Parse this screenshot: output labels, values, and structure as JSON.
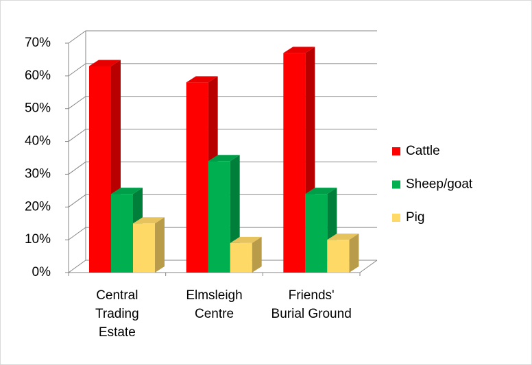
{
  "chart_data": {
    "type": "bar3d",
    "categories": [
      "Central Trading Estate",
      "Elmsleigh Centre",
      "Friends' Burial Ground"
    ],
    "series": [
      {
        "name": "Cattle",
        "color": "#ff0000",
        "values": [
          63,
          58,
          67
        ]
      },
      {
        "name": "Sheep/goat",
        "color": "#00b050",
        "values": [
          24,
          34,
          24
        ]
      },
      {
        "name": "Pig",
        "color": "#ffd966",
        "values": [
          15,
          9,
          10
        ]
      }
    ],
    "ylim": [
      0,
      70
    ],
    "yticks": [
      {
        "value": 0,
        "label": "0%"
      },
      {
        "value": 10,
        "label": "10%"
      },
      {
        "value": 20,
        "label": "20%"
      },
      {
        "value": 30,
        "label": "30%"
      },
      {
        "value": 40,
        "label": "40%"
      },
      {
        "value": 50,
        "label": "50%"
      },
      {
        "value": 60,
        "label": "60%"
      },
      {
        "value": 70,
        "label": "70%"
      }
    ],
    "grid": true,
    "legend": "right"
  }
}
